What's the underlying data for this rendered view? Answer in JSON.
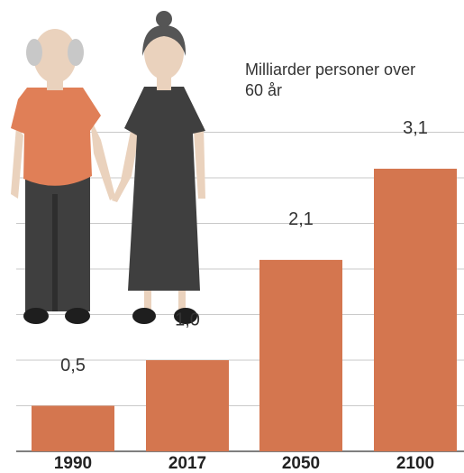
{
  "chart_data": {
    "type": "bar",
    "annotation": "Milliarder personer over 60 år",
    "categories": [
      "1990",
      "2017",
      "2050",
      "2100"
    ],
    "values": [
      0.5,
      1.0,
      2.1,
      3.1
    ],
    "value_labels": [
      "0,5",
      "1,0",
      "2,1",
      "3,1"
    ],
    "color": "#d4764f",
    "ylim": [
      0,
      3.5
    ],
    "yticks": [
      0,
      0.5,
      1,
      1.5,
      2,
      2.5,
      3,
      3.5
    ],
    "grid": true
  }
}
